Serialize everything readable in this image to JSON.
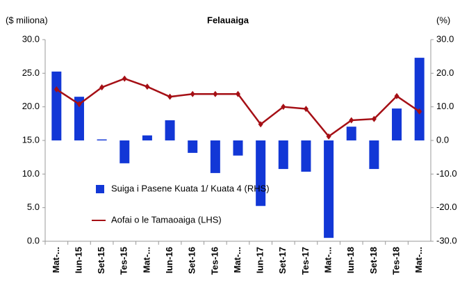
{
  "chart_data": {
    "type": "bar",
    "title": "Felauaiga",
    "ylabel": "($ miliona)",
    "y2label": "(%)",
    "categories": [
      "Mat-...",
      "Iun-15",
      "Set-15",
      "Tes-15",
      "Mat-...",
      "Iun-16",
      "Set-16",
      "Tes-16",
      "Mat-...",
      "Iun-17",
      "Set-17",
      "Tes-17",
      "Mat-...",
      "Iun-18",
      "Set-18",
      "Tes-18",
      "Mat-..."
    ],
    "series": [
      {
        "name": "Suiga i Pasene Kuata 1/ Kuata 4 (RHS)",
        "type": "bar",
        "axis": "y2",
        "color": "#1237d6",
        "values": [
          20.5,
          13.0,
          0.3,
          -6.8,
          1.5,
          6.0,
          -3.7,
          -9.7,
          -4.5,
          -19.5,
          -8.5,
          -9.3,
          -29.0,
          4.1,
          -8.5,
          9.5,
          24.6
        ]
      },
      {
        "name": "Aofai o le Tamaoaiga (LHS)",
        "type": "line",
        "axis": "y",
        "color": "#a50f15",
        "values": [
          22.6,
          20.4,
          22.9,
          24.2,
          23.0,
          21.5,
          21.9,
          21.9,
          21.9,
          17.4,
          20.0,
          19.7,
          15.6,
          18.0,
          18.2,
          21.6,
          19.3
        ]
      }
    ],
    "ylim": [
      0,
      30
    ],
    "yticks": [
      {
        "value": 0,
        "label": "0.0"
      },
      {
        "value": 5,
        "label": "5.0"
      },
      {
        "value": 10,
        "label": "10.0"
      },
      {
        "value": 15,
        "label": "15.0"
      },
      {
        "value": 20,
        "label": "20.0"
      },
      {
        "value": 25,
        "label": "25.0"
      },
      {
        "value": 30,
        "label": "30.0"
      }
    ],
    "y2lim": [
      -30,
      30
    ],
    "y2ticks": [
      {
        "value": -30,
        "label": "-30.0"
      },
      {
        "value": -20,
        "label": "-20.0"
      },
      {
        "value": -10,
        "label": "-10.0"
      },
      {
        "value": 0,
        "label": "0.0"
      },
      {
        "value": 10,
        "label": "10.0"
      },
      {
        "value": 20,
        "label": "20.0"
      },
      {
        "value": 30,
        "label": "30.0"
      }
    ],
    "grid": false
  }
}
